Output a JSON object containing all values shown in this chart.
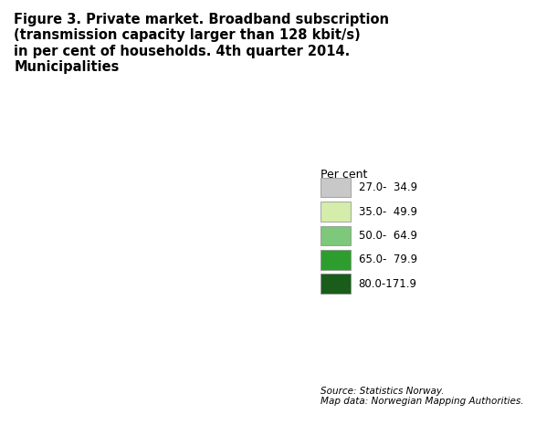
{
  "title": "Figure 3. Private market. Broadband subscription\n(transmission capacity larger than 128 kbit/s)\nin per cent of households. 4th quarter 2014.\nMunicipalities",
  "title_fontsize": 10.5,
  "source_text": "Source: Statistics Norway.\nMap data: Norwegian Mapping Authorities.",
  "legend_title": "Per cent",
  "legend_labels": [
    "27.0-  34.9",
    "35.0-  49.9",
    "50.0-  64.9",
    "65.0-  79.9",
    "80.0-171.9"
  ],
  "legend_colors": [
    "#c8c8c8",
    "#d4edaa",
    "#7dc87a",
    "#2d9e2d",
    "#1a5c1a"
  ],
  "background_color": "#ffffff",
  "figsize": [
    6.1,
    4.88
  ],
  "dpi": 100
}
